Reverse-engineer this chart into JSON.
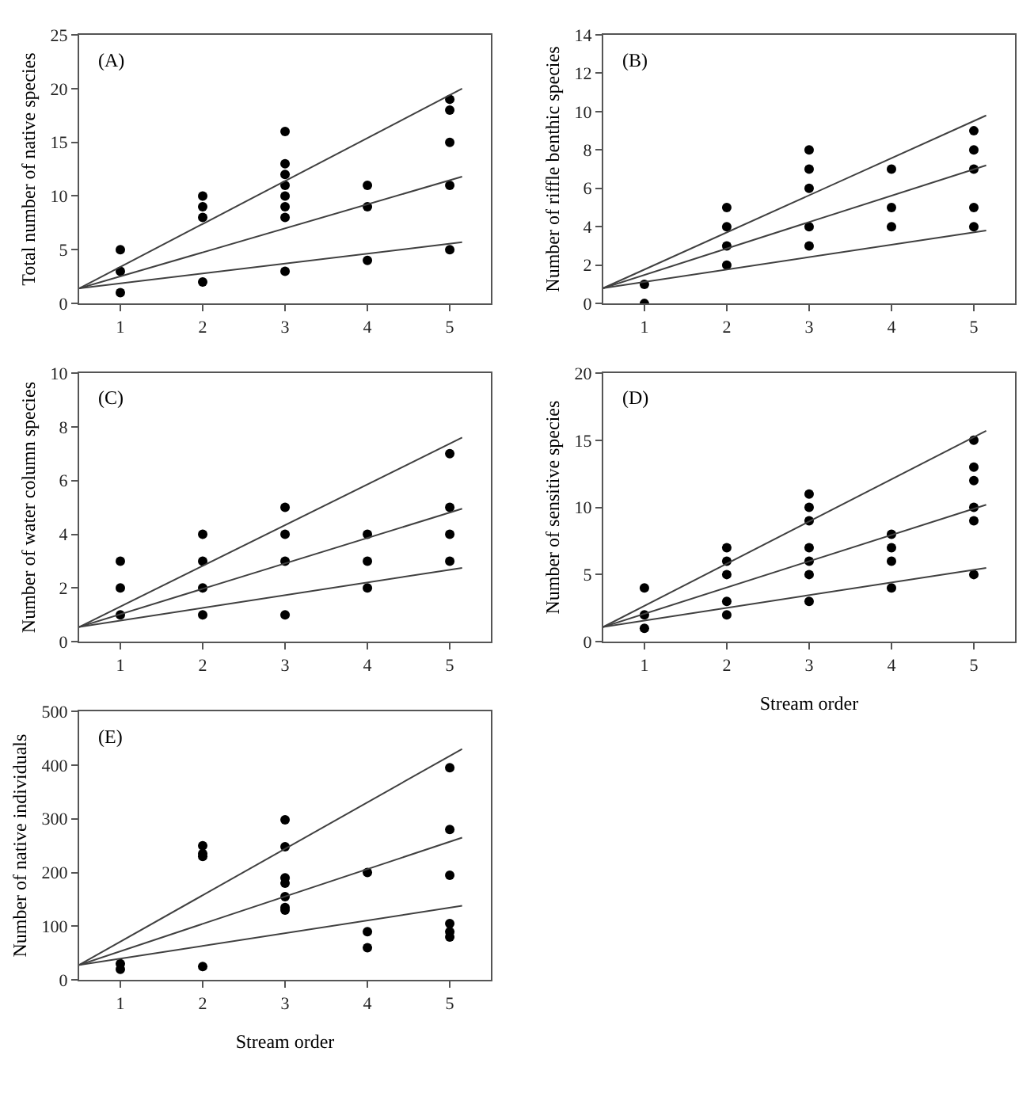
{
  "chart_data": [
    {
      "type": "scatter",
      "annotations": [
        "(A)"
      ],
      "ylabel": "Total number of native species",
      "xlim": [
        0.5,
        5.5
      ],
      "xticks": [
        1,
        2,
        3,
        4,
        5
      ],
      "ylim": [
        0,
        25
      ],
      "yticks": [
        0,
        5,
        10,
        15,
        20,
        25
      ],
      "grid": false,
      "series": [
        {
          "marker": "circle",
          "color": "#000000",
          "x": [
            1,
            1,
            1,
            2,
            2,
            2,
            2,
            3,
            3,
            3,
            3,
            3,
            3,
            3,
            3,
            4,
            4,
            4,
            5,
            5,
            5,
            5,
            5
          ],
          "values": [
            5,
            3,
            1,
            10,
            9,
            8,
            2,
            16,
            13,
            12,
            11,
            10,
            9,
            8,
            3,
            11,
            9,
            4,
            19,
            18,
            15,
            11,
            5
          ]
        },
        {
          "type": "line",
          "color": "#404040",
          "x": [
            0.5,
            5.15
          ],
          "values": [
            1.4,
            20
          ]
        },
        {
          "type": "line",
          "color": "#404040",
          "x": [
            0.5,
            5.15
          ],
          "values": [
            1.4,
            11.8
          ]
        },
        {
          "type": "line",
          "color": "#404040",
          "x": [
            0.5,
            5.15
          ],
          "values": [
            1.4,
            5.7
          ]
        }
      ]
    },
    {
      "type": "scatter",
      "annotations": [
        "(B)"
      ],
      "ylabel": "Number of riffle benthic species",
      "xlim": [
        0.5,
        5.5
      ],
      "xticks": [
        1,
        2,
        3,
        4,
        5
      ],
      "ylim": [
        0,
        14
      ],
      "yticks": [
        0,
        2,
        4,
        6,
        8,
        10,
        12,
        14
      ],
      "grid": false,
      "series": [
        {
          "marker": "circle",
          "color": "#000000",
          "x": [
            1,
            1,
            2,
            2,
            2,
            2,
            3,
            3,
            3,
            3,
            3,
            4,
            4,
            4,
            5,
            5,
            5,
            5,
            5
          ],
          "values": [
            1,
            0,
            5,
            4,
            3,
            2,
            8,
            7,
            6,
            4,
            3,
            7,
            5,
            4,
            9,
            8,
            7,
            5,
            4
          ]
        },
        {
          "type": "line",
          "color": "#404040",
          "x": [
            0.5,
            5.15
          ],
          "values": [
            0.8,
            9.8
          ]
        },
        {
          "type": "line",
          "color": "#404040",
          "x": [
            0.5,
            5.15
          ],
          "values": [
            0.8,
            7.2
          ]
        },
        {
          "type": "line",
          "color": "#404040",
          "x": [
            0.5,
            5.15
          ],
          "values": [
            0.8,
            3.8
          ]
        }
      ]
    },
    {
      "type": "scatter",
      "annotations": [
        "(C)"
      ],
      "ylabel": "Number of water column species",
      "xlim": [
        0.5,
        5.5
      ],
      "xticks": [
        1,
        2,
        3,
        4,
        5
      ],
      "ylim": [
        0,
        10
      ],
      "yticks": [
        0,
        2,
        4,
        6,
        8,
        10
      ],
      "grid": false,
      "series": [
        {
          "marker": "circle",
          "color": "#000000",
          "x": [
            1,
            1,
            1,
            2,
            2,
            2,
            2,
            3,
            3,
            3,
            3,
            4,
            4,
            4,
            5,
            5,
            5,
            5
          ],
          "values": [
            3,
            2,
            1,
            4,
            3,
            2,
            1,
            5,
            4,
            3,
            1,
            4,
            3,
            2,
            7,
            5,
            4,
            3
          ]
        },
        {
          "type": "line",
          "color": "#404040",
          "x": [
            0.5,
            5.15
          ],
          "values": [
            0.55,
            7.6
          ]
        },
        {
          "type": "line",
          "color": "#404040",
          "x": [
            0.5,
            5.15
          ],
          "values": [
            0.55,
            4.95
          ]
        },
        {
          "type": "line",
          "color": "#404040",
          "x": [
            0.5,
            5.15
          ],
          "values": [
            0.55,
            2.75
          ]
        }
      ]
    },
    {
      "type": "scatter",
      "annotations": [
        "(D)"
      ],
      "xlabel": "Stream order",
      "ylabel": "Number of sensitive species",
      "xlim": [
        0.5,
        5.5
      ],
      "xticks": [
        1,
        2,
        3,
        4,
        5
      ],
      "ylim": [
        0,
        20
      ],
      "yticks": [
        0,
        5,
        10,
        15,
        20
      ],
      "grid": false,
      "series": [
        {
          "marker": "circle",
          "color": "#000000",
          "x": [
            1,
            1,
            1,
            2,
            2,
            2,
            2,
            2,
            3,
            3,
            3,
            3,
            3,
            3,
            3,
            4,
            4,
            4,
            4,
            5,
            5,
            5,
            5,
            5,
            5
          ],
          "values": [
            4,
            2,
            1,
            7,
            6,
            5,
            3,
            2,
            11,
            10,
            9,
            7,
            6,
            5,
            3,
            8,
            7,
            6,
            4,
            15,
            13,
            12,
            10,
            9,
            5
          ]
        },
        {
          "type": "line",
          "color": "#404040",
          "x": [
            0.5,
            5.15
          ],
          "values": [
            1.1,
            15.7
          ]
        },
        {
          "type": "line",
          "color": "#404040",
          "x": [
            0.5,
            5.15
          ],
          "values": [
            1.1,
            10.2
          ]
        },
        {
          "type": "line",
          "color": "#404040",
          "x": [
            0.5,
            5.15
          ],
          "values": [
            1.1,
            5.5
          ]
        }
      ]
    },
    {
      "type": "scatter",
      "annotations": [
        "(E)"
      ],
      "xlabel": "Stream order",
      "ylabel": "Number of native individuals",
      "xlim": [
        0.5,
        5.5
      ],
      "xticks": [
        1,
        2,
        3,
        4,
        5
      ],
      "ylim": [
        0,
        500
      ],
      "yticks": [
        0,
        100,
        200,
        300,
        400,
        500
      ],
      "grid": false,
      "series": [
        {
          "marker": "circle",
          "color": "#000000",
          "x": [
            1,
            1,
            2,
            2,
            2,
            2,
            3,
            3,
            3,
            3,
            3,
            3,
            3,
            4,
            4,
            4,
            5,
            5,
            5,
            5,
            5,
            5
          ],
          "values": [
            30,
            20,
            250,
            235,
            230,
            25,
            298,
            248,
            190,
            180,
            155,
            135,
            130,
            200,
            90,
            60,
            395,
            280,
            195,
            105,
            90,
            80
          ]
        },
        {
          "type": "line",
          "color": "#404040",
          "x": [
            0.5,
            5.15
          ],
          "values": [
            28,
            430
          ]
        },
        {
          "type": "line",
          "color": "#404040",
          "x": [
            0.5,
            5.15
          ],
          "values": [
            28,
            265
          ]
        },
        {
          "type": "line",
          "color": "#404040",
          "x": [
            0.5,
            5.15
          ],
          "values": [
            28,
            138
          ]
        }
      ]
    }
  ]
}
